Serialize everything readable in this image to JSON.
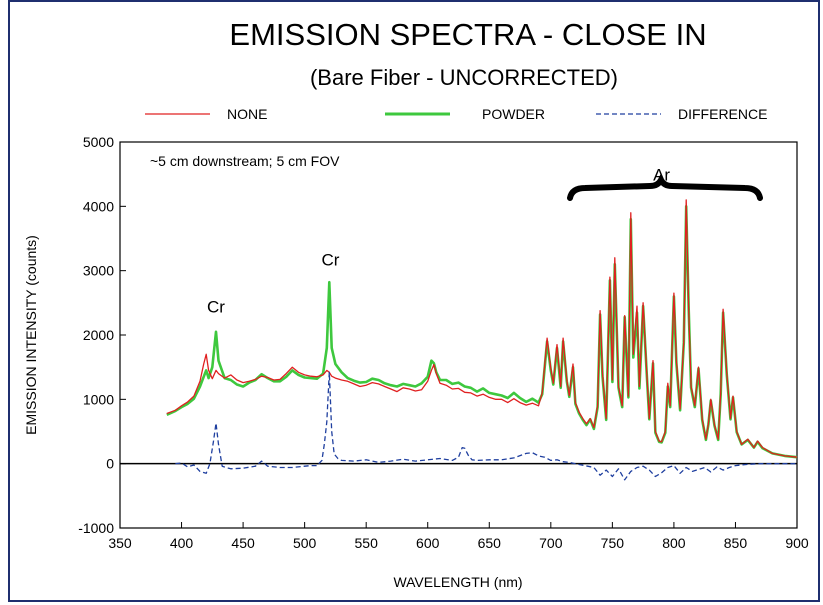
{
  "chart_data": {
    "type": "line",
    "title": "EMISSION SPECTRA - CLOSE IN",
    "subtitle": "(Bare Fiber - UNCORRECTED)",
    "xlabel": "WAVELENGTH (nm)",
    "ylabel": "EMISSION INTENSITY (counts)",
    "xlim": [
      350,
      900
    ],
    "ylim": [
      -1000,
      5000
    ],
    "x_ticks": [
      350,
      400,
      450,
      500,
      550,
      600,
      650,
      700,
      750,
      800,
      850,
      900
    ],
    "y_ticks": [
      -1000,
      0,
      1000,
      2000,
      3000,
      4000,
      5000
    ],
    "grid": false,
    "legend_position": "top",
    "annotation_condition": "~5 cm downstream; 5 cm FOV",
    "peak_labels": [
      {
        "text": "Cr",
        "x": 428,
        "y": 2350
      },
      {
        "text": "Cr",
        "x": 521,
        "y": 3080
      },
      {
        "text": "Ar",
        "x": 790,
        "y": 4400
      }
    ],
    "series": [
      {
        "name": "NONE",
        "color": "#e02020",
        "style": "solid",
        "x": [
          388,
          395,
          400,
          405,
          410,
          415,
          418,
          420,
          422,
          425,
          428,
          430,
          435,
          440,
          445,
          450,
          455,
          460,
          465,
          470,
          475,
          480,
          485,
          490,
          495,
          500,
          505,
          510,
          515,
          518,
          520,
          522,
          525,
          530,
          535,
          540,
          545,
          550,
          555,
          560,
          565,
          570,
          575,
          580,
          585,
          590,
          595,
          600,
          603,
          605,
          607,
          610,
          615,
          620,
          625,
          630,
          635,
          640,
          645,
          650,
          655,
          660,
          665,
          670,
          675,
          680,
          685,
          690,
          693,
          697,
          700,
          702,
          705,
          708,
          710,
          713,
          715,
          718,
          720,
          723,
          726,
          729,
          732,
          735,
          738,
          740,
          742,
          745,
          748,
          750,
          752,
          755,
          758,
          760,
          763,
          765,
          767,
          770,
          772,
          775,
          778,
          780,
          783,
          785,
          788,
          790,
          793,
          795,
          797,
          800,
          802,
          805,
          808,
          810,
          812,
          814,
          817,
          820,
          823,
          826,
          828,
          830,
          833,
          836,
          838,
          840,
          843,
          846,
          848,
          851,
          855,
          860,
          865,
          868,
          872,
          880,
          890,
          900
        ],
        "values": [
          780,
          830,
          900,
          960,
          1050,
          1280,
          1550,
          1700,
          1450,
          1320,
          1450,
          1400,
          1330,
          1380,
          1300,
          1260,
          1280,
          1310,
          1360,
          1340,
          1300,
          1310,
          1400,
          1500,
          1420,
          1380,
          1360,
          1350,
          1380,
          1450,
          1420,
          1360,
          1330,
          1300,
          1280,
          1240,
          1200,
          1220,
          1260,
          1240,
          1200,
          1160,
          1120,
          1180,
          1160,
          1130,
          1150,
          1280,
          1450,
          1540,
          1400,
          1250,
          1220,
          1160,
          1170,
          1110,
          1100,
          1050,
          1080,
          1030,
          1000,
          1000,
          950,
          1010,
          950,
          910,
          940,
          900,
          1100,
          1950,
          1480,
          1250,
          1850,
          1200,
          1950,
          1300,
          1060,
          1550,
          950,
          800,
          700,
          620,
          700,
          560,
          900,
          2380,
          1400,
          700,
          2900,
          1300,
          3200,
          1200,
          900,
          2300,
          1050,
          3900,
          1700,
          2450,
          1200,
          2500,
          1400,
          700,
          1600,
          500,
          350,
          340,
          500,
          1250,
          900,
          2650,
          1600,
          850,
          1900,
          4100,
          2400,
          1200,
          900,
          1500,
          700,
          380,
          620,
          1000,
          600,
          380,
          1100,
          2400,
          1400,
          700,
          1050,
          500,
          300,
          380,
          250,
          350,
          250,
          160,
          120,
          100
        ]
      },
      {
        "name": "POWDER",
        "color": "#3ec83e",
        "style": "solid",
        "x": [
          388,
          395,
          400,
          405,
          410,
          415,
          418,
          420,
          422,
          425,
          428,
          430,
          435,
          440,
          445,
          450,
          455,
          460,
          465,
          470,
          475,
          480,
          485,
          490,
          495,
          500,
          505,
          510,
          515,
          518,
          520,
          522,
          525,
          530,
          535,
          540,
          545,
          550,
          555,
          560,
          565,
          570,
          575,
          580,
          585,
          590,
          595,
          600,
          603,
          605,
          607,
          610,
          615,
          620,
          625,
          630,
          635,
          640,
          645,
          650,
          655,
          660,
          665,
          670,
          675,
          680,
          685,
          690,
          693,
          697,
          700,
          702,
          705,
          708,
          710,
          713,
          715,
          718,
          720,
          723,
          726,
          729,
          732,
          735,
          738,
          740,
          742,
          745,
          748,
          750,
          752,
          755,
          758,
          760,
          763,
          765,
          767,
          770,
          772,
          775,
          778,
          780,
          783,
          785,
          788,
          790,
          793,
          795,
          797,
          800,
          802,
          805,
          808,
          810,
          812,
          814,
          817,
          820,
          823,
          826,
          828,
          830,
          833,
          836,
          838,
          840,
          843,
          846,
          848,
          851,
          855,
          860,
          865,
          868,
          872,
          880,
          890,
          900
        ],
        "values": [
          760,
          820,
          880,
          930,
          1010,
          1200,
          1350,
          1450,
          1330,
          1500,
          2050,
          1600,
          1330,
          1300,
          1230,
          1200,
          1260,
          1300,
          1390,
          1330,
          1280,
          1280,
          1350,
          1450,
          1380,
          1340,
          1330,
          1320,
          1400,
          1800,
          2820,
          1800,
          1550,
          1420,
          1330,
          1290,
          1260,
          1270,
          1320,
          1300,
          1250,
          1220,
          1200,
          1240,
          1220,
          1200,
          1250,
          1350,
          1600,
          1560,
          1420,
          1300,
          1300,
          1240,
          1260,
          1200,
          1180,
          1120,
          1170,
          1100,
          1080,
          1060,
          1020,
          1100,
          1020,
          960,
          1010,
          950,
          1080,
          1900,
          1450,
          1230,
          1800,
          1180,
          1900,
          1280,
          1040,
          1500,
          930,
          780,
          680,
          600,
          690,
          540,
          880,
          2320,
          1360,
          680,
          2850,
          1270,
          3100,
          1180,
          880,
          2280,
          1030,
          3800,
          1650,
          2350,
          1170,
          2450,
          1380,
          690,
          1560,
          480,
          340,
          330,
          480,
          1200,
          880,
          2600,
          1560,
          830,
          1880,
          4000,
          2400,
          1180,
          880,
          1480,
          680,
          370,
          610,
          980,
          590,
          370,
          1080,
          2350,
          1380,
          690,
          1030,
          490,
          300,
          370,
          250,
          340,
          240,
          160,
          120,
          100
        ]
      },
      {
        "name": "DIFFERENCE",
        "color": "#1f3f9f",
        "style": "dashed",
        "x": [
          395,
          400,
          405,
          410,
          415,
          420,
          423,
          426,
          428,
          430,
          433,
          436,
          440,
          450,
          460,
          465,
          470,
          480,
          490,
          500,
          505,
          510,
          514,
          516,
          518,
          520,
          522,
          524,
          527,
          530,
          540,
          550,
          560,
          570,
          580,
          590,
          600,
          610,
          620,
          625,
          628,
          630,
          633,
          636,
          640,
          650,
          660,
          670,
          680,
          685,
          690,
          695,
          700,
          705,
          710,
          715,
          720,
          725,
          730,
          735,
          740,
          745,
          750,
          755,
          760,
          765,
          770,
          775,
          780,
          785,
          790,
          795,
          800,
          805,
          810,
          815,
          820,
          825,
          830,
          835,
          840,
          845,
          850,
          860,
          870,
          880,
          890,
          900
        ],
        "values": [
          0,
          10,
          -50,
          -20,
          -120,
          -150,
          0,
          350,
          630,
          300,
          -40,
          -60,
          -80,
          -70,
          -40,
          40,
          -40,
          -60,
          -60,
          -40,
          -30,
          -30,
          50,
          300,
          650,
          1420,
          500,
          150,
          80,
          50,
          40,
          60,
          20,
          40,
          70,
          40,
          60,
          80,
          50,
          100,
          250,
          240,
          130,
          60,
          50,
          60,
          60,
          90,
          160,
          170,
          120,
          100,
          50,
          60,
          30,
          20,
          0,
          -20,
          -40,
          -60,
          -180,
          -100,
          -200,
          -80,
          -250,
          -120,
          -60,
          -40,
          -100,
          -200,
          -140,
          -60,
          -30,
          -150,
          -60,
          -120,
          -90,
          -60,
          -130,
          -50,
          -100,
          -60,
          -30,
          -10,
          0,
          0,
          0,
          0
        ]
      }
    ]
  }
}
